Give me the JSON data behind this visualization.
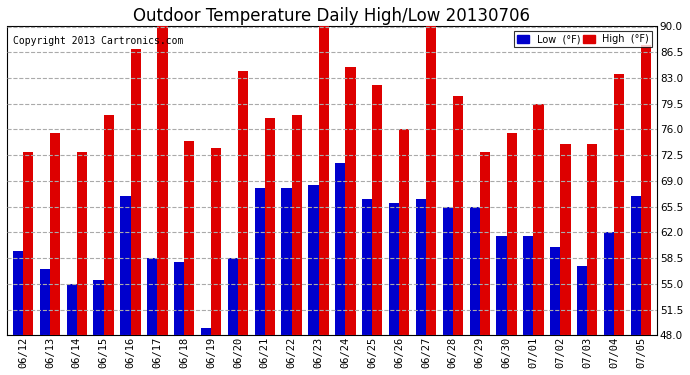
{
  "title": "Outdoor Temperature Daily High/Low 20130706",
  "copyright": "Copyright 2013 Cartronics.com",
  "legend_low": "Low  (°F)",
  "legend_high": "High  (°F)",
  "ylabel_right_ticks": [
    48.0,
    51.5,
    55.0,
    58.5,
    62.0,
    65.5,
    69.0,
    72.5,
    76.0,
    79.5,
    83.0,
    86.5,
    90.0
  ],
  "dates": [
    "06/12",
    "06/13",
    "06/14",
    "06/15",
    "06/16",
    "06/17",
    "06/18",
    "06/19",
    "06/20",
    "06/21",
    "06/22",
    "06/23",
    "06/24",
    "06/25",
    "06/26",
    "06/27",
    "06/28",
    "06/29",
    "06/30",
    "07/01",
    "07/02",
    "07/03",
    "07/04",
    "07/05"
  ],
  "highs": [
    73.0,
    75.5,
    73.0,
    78.0,
    87.0,
    90.5,
    74.5,
    73.5,
    84.0,
    77.5,
    78.0,
    90.5,
    84.5,
    82.0,
    76.0,
    90.5,
    80.5,
    73.0,
    75.5,
    79.5,
    74.0,
    74.0,
    83.5,
    87.5
  ],
  "lows": [
    59.5,
    57.0,
    55.0,
    55.5,
    67.0,
    58.5,
    58.0,
    49.0,
    58.5,
    68.0,
    68.0,
    68.5,
    71.5,
    66.5,
    66.0,
    66.5,
    65.5,
    65.5,
    61.5,
    61.5,
    60.0,
    57.5,
    62.0,
    67.0
  ],
  "color_low": "#0000cc",
  "color_high": "#dd0000",
  "bg_color": "#ffffff",
  "grid_color": "#aaaaaa",
  "ylim_min": 48.0,
  "ylim_max": 90.0,
  "title_fontsize": 12,
  "tick_fontsize": 7.5,
  "copyright_fontsize": 7
}
